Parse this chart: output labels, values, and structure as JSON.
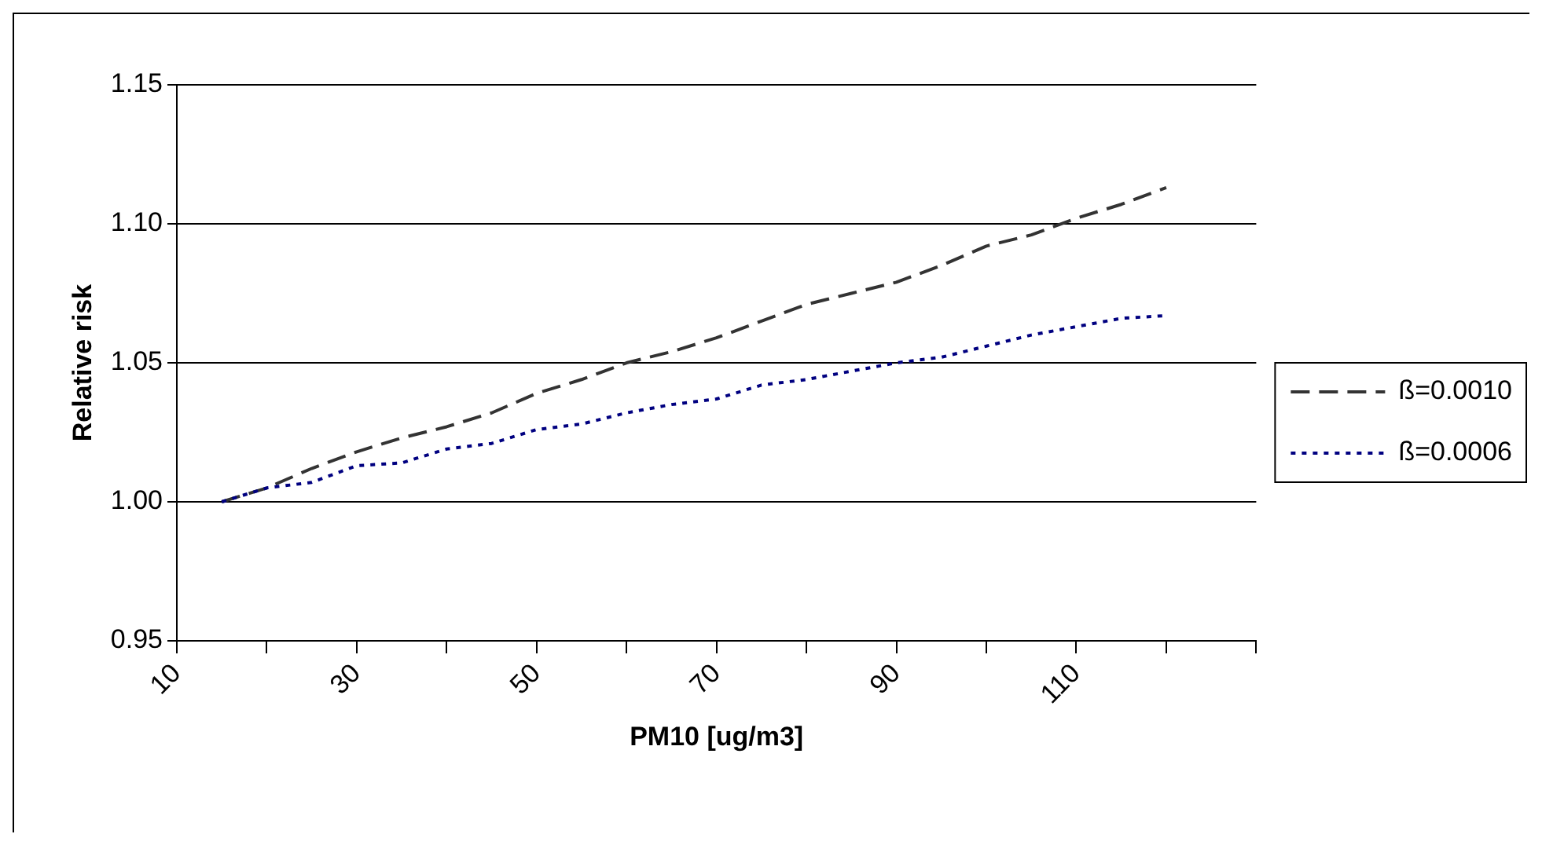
{
  "chart_data": {
    "type": "line",
    "xlabel": "PM10 [ug/m3]",
    "ylabel": "Relative risk",
    "x": [
      15,
      20,
      25,
      30,
      35,
      40,
      45,
      50,
      55,
      60,
      65,
      70,
      75,
      80,
      85,
      90,
      95,
      100,
      105,
      110,
      115,
      120
    ],
    "series": [
      {
        "name": "ß=0.0010",
        "color": "#333333",
        "line_style": "dashed",
        "values": [
          1.0,
          1.005,
          1.012,
          1.018,
          1.023,
          1.027,
          1.032,
          1.039,
          1.044,
          1.05,
          1.054,
          1.059,
          1.065,
          1.071,
          1.075,
          1.079,
          1.085,
          1.092,
          1.096,
          1.102,
          1.107,
          1.113
        ]
      },
      {
        "name": "ß=0.0006",
        "color": "#000080",
        "line_style": "dotted",
        "values": [
          1.0,
          1.005,
          1.007,
          1.013,
          1.014,
          1.019,
          1.021,
          1.026,
          1.028,
          1.032,
          1.035,
          1.037,
          1.042,
          1.044,
          1.047,
          1.05,
          1.052,
          1.056,
          1.06,
          1.063,
          1.066,
          1.067
        ]
      }
    ],
    "xlim": [
      10,
      130
    ],
    "xticks": [
      10,
      {
        "value": 20,
        "label": null
      },
      30,
      {
        "value": 40,
        "label": null
      },
      50,
      {
        "value": 60,
        "label": null
      },
      70,
      {
        "value": 80,
        "label": null
      },
      90,
      {
        "value": 100,
        "label": null
      },
      110,
      {
        "value": 120,
        "label": null
      },
      {
        "value": 130,
        "label": null
      }
    ],
    "ylim": [
      0.95,
      1.15
    ],
    "yticks": [
      {
        "value": 0.95,
        "label": "0.95"
      },
      {
        "value": 1.0,
        "label": "1.00"
      },
      {
        "value": 1.05,
        "label": "1.05"
      },
      {
        "value": 1.1,
        "label": "1.10"
      },
      {
        "value": 1.15,
        "label": "1.15"
      }
    ],
    "grid": "y",
    "legend": "right",
    "marker": "none"
  }
}
